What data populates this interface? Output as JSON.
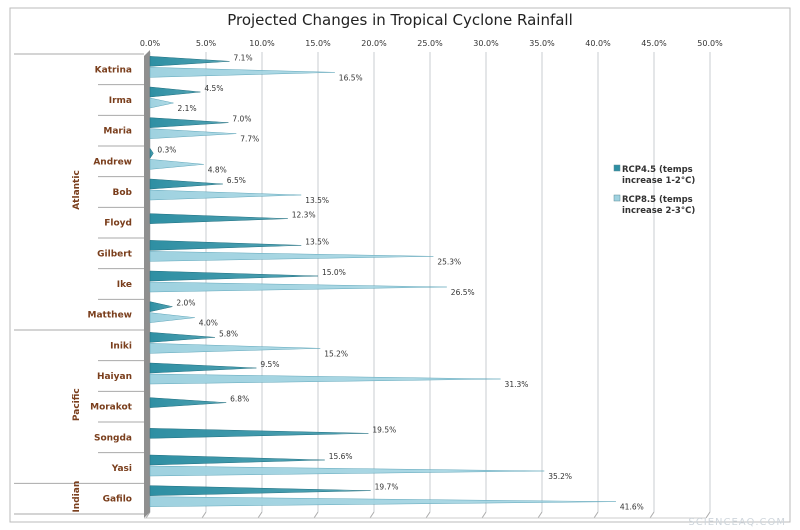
{
  "chart_data": {
    "type": "bar",
    "orientation": "horizontal",
    "title": "Projected Changes in Tropical Cyclone Rainfall",
    "xlim": [
      0,
      50
    ],
    "x_ticks": [
      "0.0%",
      "5.0%",
      "10.0%",
      "15.0%",
      "20.0%",
      "25.0%",
      "30.0%",
      "35.0%",
      "40.0%",
      "45.0%",
      "50.0%"
    ],
    "grid": "vertical",
    "legend_position": "right",
    "groups": [
      {
        "name": "Atlantic",
        "categories": [
          "Katrina",
          "Irma",
          "Maria",
          "Andrew",
          "Bob",
          "Floyd",
          "Gilbert",
          "Ike",
          "Matthew"
        ]
      },
      {
        "name": "Pacific",
        "categories": [
          "Iniki",
          "Haiyan",
          "Morakot",
          "Songda",
          "Yasi"
        ]
      },
      {
        "name": "Indian",
        "categories": [
          "Gafilo"
        ]
      }
    ],
    "categories": [
      "Katrina",
      "Irma",
      "Maria",
      "Andrew",
      "Bob",
      "Floyd",
      "Gilbert",
      "Ike",
      "Matthew",
      "Iniki",
      "Haiyan",
      "Morakot",
      "Songda",
      "Yasi",
      "Gafilo"
    ],
    "series": [
      {
        "name": "RCP4.5 (temps increase 1-2°C)",
        "legend_lines": [
          "RCP4.5 (temps",
          "increase 1-2°C)"
        ],
        "color": "#2e8fa3",
        "values": [
          7.1,
          4.5,
          7.0,
          0.3,
          6.5,
          12.3,
          13.5,
          15.0,
          2.0,
          5.8,
          9.5,
          6.8,
          19.5,
          15.6,
          19.7
        ]
      },
      {
        "name": "RCP8.5 (temps increase 2-3°C)",
        "legend_lines": [
          "RCP8.5 (temps",
          "increase 2-3°C)"
        ],
        "color": "#9fd2e0",
        "values": [
          16.5,
          2.1,
          7.7,
          4.8,
          13.5,
          null,
          25.3,
          26.5,
          4.0,
          15.2,
          31.3,
          null,
          null,
          35.2,
          41.6
        ]
      }
    ],
    "label_color": "#7a3e1c"
  },
  "watermark": "SCIENCEAQ.COM"
}
